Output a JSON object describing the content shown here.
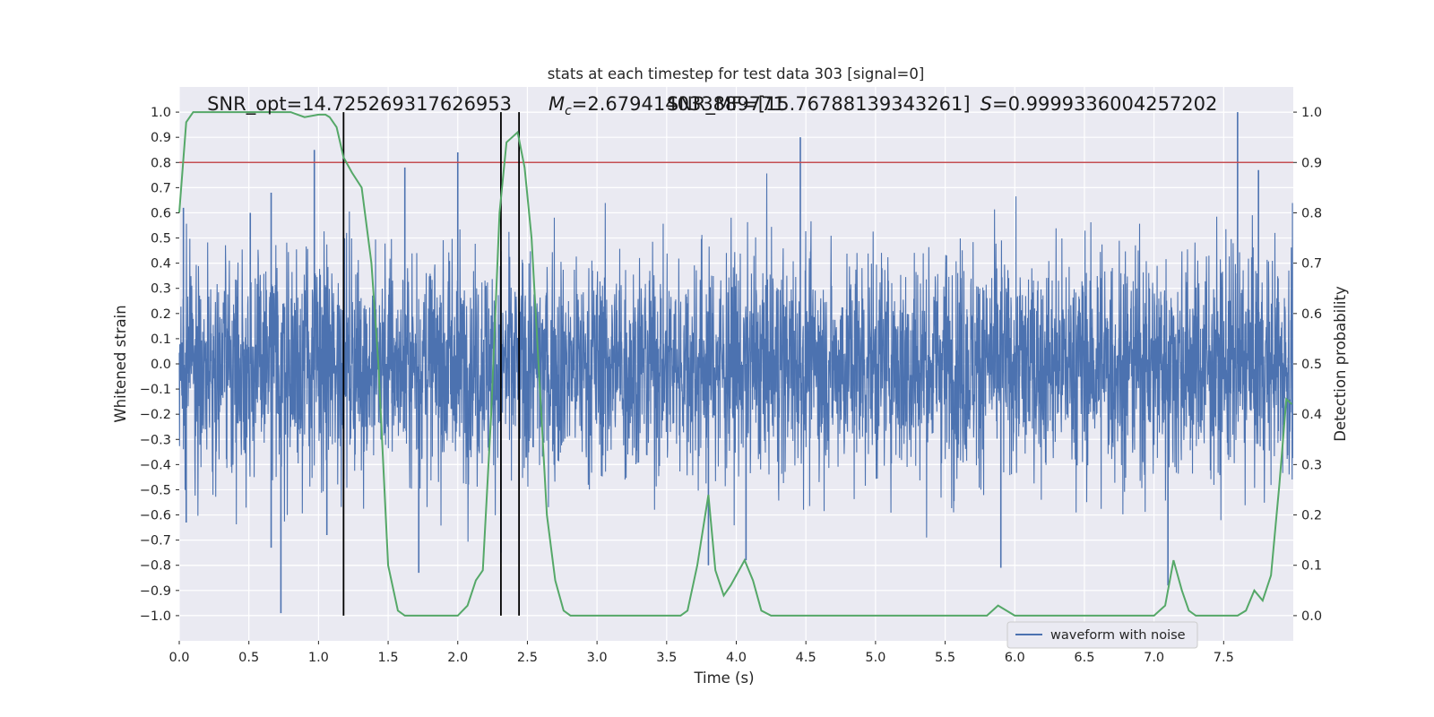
{
  "chart_data": {
    "type": "line",
    "title": "stats at each timestep for test data 303 [signal=0]",
    "xlabel": "Time (s)",
    "ylabel_left": "Whitened strain",
    "ylabel_right": "Detection probability",
    "xlim": [
      0.0,
      8.0
    ],
    "ylim_left": [
      -1.1,
      1.1
    ],
    "ylim_right": [
      -0.05,
      1.05
    ],
    "x_ticks": [
      "0.0",
      "0.5",
      "1.0",
      "1.5",
      "2.0",
      "2.5",
      "3.0",
      "3.5",
      "4.0",
      "4.5",
      "5.0",
      "5.5",
      "6.0",
      "6.5",
      "7.0",
      "7.5"
    ],
    "x_tick_values": [
      0.0,
      0.5,
      1.0,
      1.5,
      2.0,
      2.5,
      3.0,
      3.5,
      4.0,
      4.5,
      5.0,
      5.5,
      6.0,
      6.5,
      7.0,
      7.5
    ],
    "y_left_ticks": [
      "1.0",
      "0.9",
      "0.8",
      "0.7",
      "0.6",
      "0.5",
      "0.4",
      "0.3",
      "0.2",
      "0.1",
      "0.0",
      "−0.1",
      "−0.2",
      "−0.3",
      "−0.4",
      "−0.5",
      "−0.6",
      "−0.7",
      "−0.8",
      "−0.9",
      "−1.0"
    ],
    "y_left_tick_values": [
      1.0,
      0.9,
      0.8,
      0.7,
      0.6,
      0.5,
      0.4,
      0.3,
      0.2,
      0.1,
      0.0,
      -0.1,
      -0.2,
      -0.3,
      -0.4,
      -0.5,
      -0.6,
      -0.7,
      -0.8,
      -0.9,
      -1.0
    ],
    "y_right_ticks": [
      "1.0",
      "0.9",
      "0.8",
      "0.7",
      "0.6",
      "0.5",
      "0.4",
      "0.3",
      "0.2",
      "0.1",
      "0.0"
    ],
    "y_right_tick_values": [
      1.0,
      0.9,
      0.8,
      0.7,
      0.6,
      0.5,
      0.4,
      0.3,
      0.2,
      0.1,
      0.0
    ],
    "grid": true,
    "legend": {
      "placement": "lower-right",
      "entries": [
        "waveform with noise"
      ]
    },
    "annotations": [
      {
        "text": "SNR_opt=14.725269317626953",
        "x": 0.2
      },
      {
        "text": "=2.679414033889771",
        "math_prefix": "M",
        "math_sub": "c",
        "x": 2.6
      },
      {
        "text": "SNR_MF=[15.76788139343261]",
        "x": 3.5
      },
      {
        "text": "=0.9999336004257202",
        "math_prefix": "S",
        "x": 5.7
      }
    ],
    "threshold": {
      "y": 0.9,
      "axis": "right",
      "color": "#c44e52"
    },
    "vertical_lines": [
      1.18,
      2.31,
      2.44
    ],
    "vline_range": [
      -1.0,
      1.0
    ],
    "series": [
      {
        "name": "waveform with noise",
        "axis": "left",
        "color": "#4c72b0",
        "envelope_typical": 0.42,
        "spikes": [
          {
            "x": 0.03,
            "y": 0.62
          },
          {
            "x": 0.05,
            "y": -0.63
          },
          {
            "x": 0.51,
            "y": 0.6
          },
          {
            "x": 0.66,
            "y": 0.68
          },
          {
            "x": 0.66,
            "y": -0.73
          },
          {
            "x": 0.73,
            "y": -0.99
          },
          {
            "x": 0.97,
            "y": 0.85
          },
          {
            "x": 1.06,
            "y": -0.68
          },
          {
            "x": 1.62,
            "y": 0.78
          },
          {
            "x": 1.72,
            "y": -0.83
          },
          {
            "x": 2.0,
            "y": 0.84
          },
          {
            "x": 2.31,
            "y": -0.75
          },
          {
            "x": 4.46,
            "y": 0.9
          },
          {
            "x": 4.07,
            "y": -0.78
          },
          {
            "x": 5.9,
            "y": -0.81
          },
          {
            "x": 7.1,
            "y": -0.88
          },
          {
            "x": 7.6,
            "y": 1.0
          },
          {
            "x": 7.75,
            "y": 0.77
          },
          {
            "x": 3.8,
            "y": -0.8
          }
        ]
      },
      {
        "name": "",
        "axis": "right",
        "color": "#55a868",
        "x": [
          0.0,
          0.05,
          0.1,
          0.2,
          0.3,
          0.4,
          0.5,
          0.6,
          0.7,
          0.8,
          0.9,
          1.0,
          1.05,
          1.08,
          1.13,
          1.18,
          1.24,
          1.31,
          1.38,
          1.43,
          1.5,
          1.57,
          1.62,
          1.7,
          1.8,
          1.9,
          2.0,
          2.07,
          2.13,
          2.18,
          2.24,
          2.3,
          2.35,
          2.39,
          2.43,
          2.48,
          2.53,
          2.58,
          2.64,
          2.7,
          2.76,
          2.81,
          2.9,
          3.0,
          3.2,
          3.4,
          3.6,
          3.65,
          3.72,
          3.8,
          3.85,
          3.91,
          3.96,
          4.06,
          4.12,
          4.18,
          4.25,
          4.4,
          4.6,
          4.8,
          5.0,
          5.2,
          5.4,
          5.6,
          5.8,
          5.88,
          5.94,
          6.0,
          6.2,
          6.5,
          6.8,
          7.0,
          7.08,
          7.14,
          7.2,
          7.25,
          7.3,
          7.4,
          7.6,
          7.66,
          7.72,
          7.78,
          7.84,
          7.9,
          7.95,
          7.99
        ],
        "y": [
          0.8,
          0.98,
          1.0,
          1.0,
          1.0,
          1.0,
          1.0,
          1.0,
          1.0,
          1.0,
          0.99,
          0.995,
          0.995,
          0.99,
          0.97,
          0.91,
          0.88,
          0.85,
          0.7,
          0.5,
          0.1,
          0.01,
          0.0,
          0.0,
          0.0,
          0.0,
          0.0,
          0.02,
          0.07,
          0.09,
          0.4,
          0.8,
          0.94,
          0.95,
          0.96,
          0.89,
          0.75,
          0.5,
          0.2,
          0.07,
          0.01,
          0.0,
          0.0,
          0.0,
          0.0,
          0.0,
          0.0,
          0.01,
          0.1,
          0.24,
          0.09,
          0.04,
          0.06,
          0.11,
          0.07,
          0.01,
          0.0,
          0.0,
          0.0,
          0.0,
          0.0,
          0.0,
          0.0,
          0.0,
          0.0,
          0.02,
          0.01,
          0.0,
          0.0,
          0.0,
          0.0,
          0.0,
          0.02,
          0.11,
          0.05,
          0.01,
          0.0,
          0.0,
          0.0,
          0.01,
          0.05,
          0.03,
          0.08,
          0.26,
          0.43,
          0.42
        ]
      }
    ]
  }
}
